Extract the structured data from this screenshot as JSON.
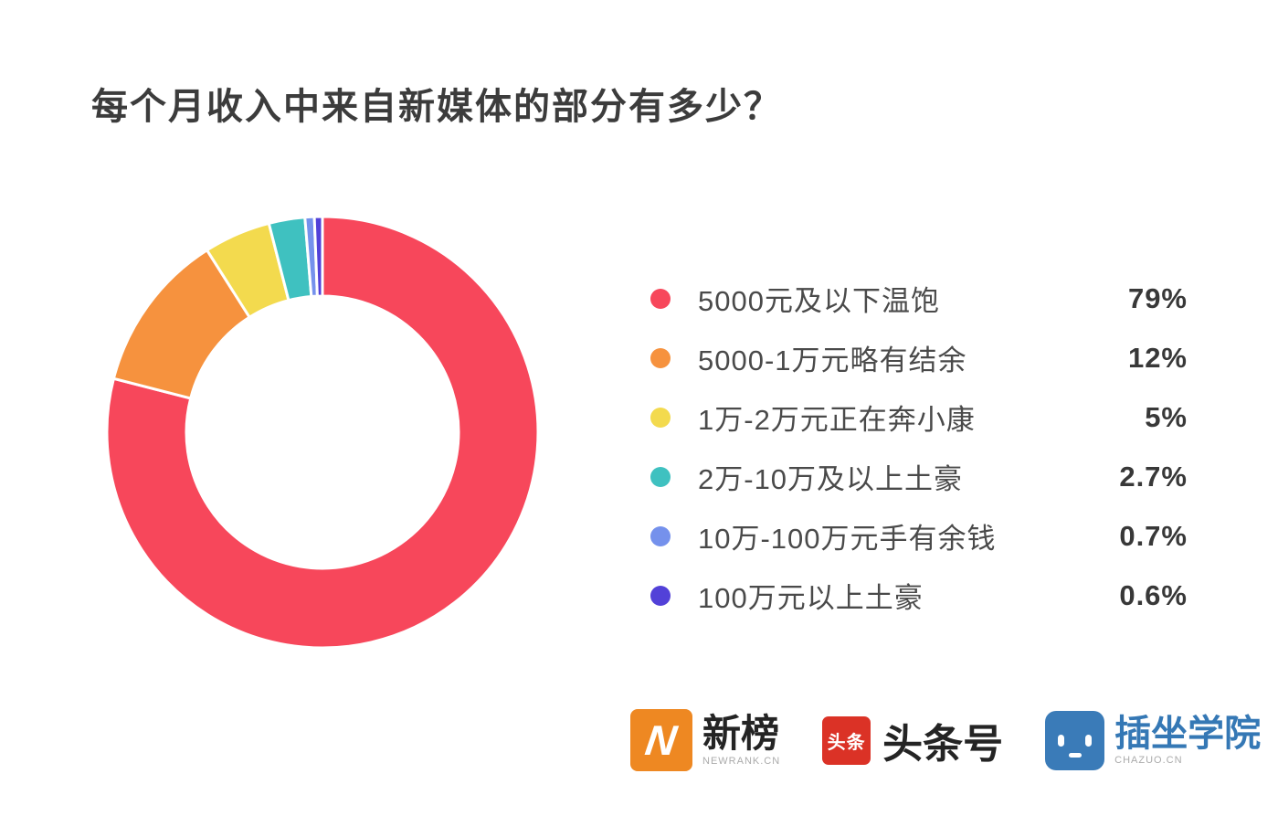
{
  "title": "每个月收入中来自新媒体的部分有多少？",
  "chart_data": {
    "type": "pie",
    "subtype": "donut",
    "title": "每个月收入中来自新媒体的部分有多少？",
    "categories": [
      "5000元及以下温饱",
      "5000-1万元略有结余",
      "1万-2万元正在奔小康",
      "2万-10万及以上土豪",
      "10万-100万元手有余钱",
      "100万元以上土豪"
    ],
    "values": [
      79,
      12,
      5,
      2.7,
      0.7,
      0.6
    ],
    "percent_labels": [
      "79%",
      "12%",
      "5%",
      "2.7%",
      "0.7%",
      "0.6%"
    ],
    "colors": [
      "#F7475B",
      "#F6923E",
      "#F3DA4E",
      "#3FC1C0",
      "#7591EC",
      "#5241D8"
    ],
    "start_angle_deg": 0,
    "direction": "clockwise",
    "inner_radius_ratio": 0.63,
    "legend_position": "right",
    "slice_separator_color": "#ffffff"
  },
  "legend": {
    "items": [
      {
        "label": "5000元及以下温饱",
        "value": "79%",
        "color": "#F7475B"
      },
      {
        "label": "5000-1万元略有结余",
        "value": "12%",
        "color": "#F6923E"
      },
      {
        "label": "1万-2万元正在奔小康",
        "value": "5%",
        "color": "#F3DA4E"
      },
      {
        "label": "2万-10万及以上土豪",
        "value": "2.7%",
        "color": "#3FC1C0"
      },
      {
        "label": "10万-100万元手有余钱",
        "value": "0.7%",
        "color": "#7591EC"
      },
      {
        "label": "100万元以上土豪",
        "value": "0.6%",
        "color": "#5241D8"
      }
    ]
  },
  "footer": {
    "brands": [
      {
        "name": "新榜",
        "subtitle": "NEWRANK.CN",
        "logo_glyph": "N",
        "logo_color": "#EE8822"
      },
      {
        "name": "头条号",
        "subtitle": "",
        "logo_glyph": "头条",
        "logo_color": "#DB3226"
      },
      {
        "name": "插坐学院",
        "subtitle": "CHAZUO.CN",
        "logo_glyph": "robot-face",
        "logo_color": "#3A7BB8"
      }
    ]
  }
}
